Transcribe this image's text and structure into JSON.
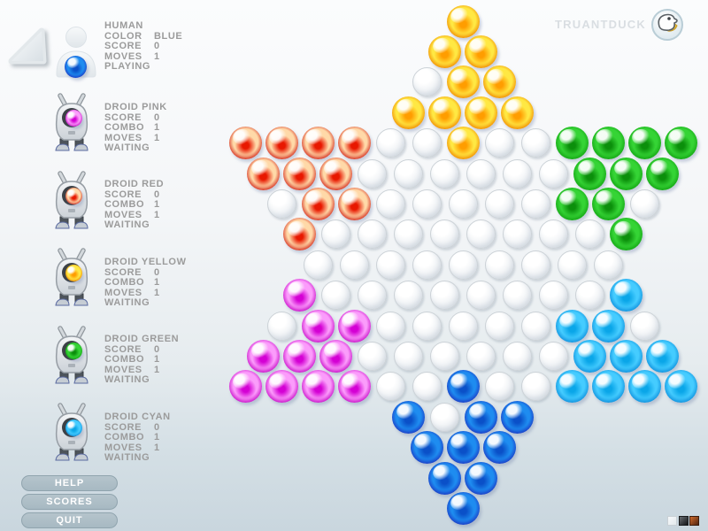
{
  "brand": {
    "name": "TRUANTDUCK",
    "logo_icon": "duck-logo-icon"
  },
  "players": [
    {
      "name": "HUMAN",
      "avatar": "human",
      "marble": "B",
      "stats": [
        [
          "COLOR",
          "BLUE"
        ],
        [
          "SCORE",
          "0"
        ],
        [
          "MOVES",
          "1"
        ]
      ],
      "status": "PLAYING"
    },
    {
      "name": "DROID PINK",
      "avatar": "droid",
      "marble": "M",
      "stats": [
        [
          "SCORE",
          "0"
        ],
        [
          "COMBO",
          "1"
        ],
        [
          "MOVES",
          "1"
        ]
      ],
      "status": "WAITING"
    },
    {
      "name": "DROID RED",
      "avatar": "droid",
      "marble": "R",
      "stats": [
        [
          "SCORE",
          "0"
        ],
        [
          "COMBO",
          "1"
        ],
        [
          "MOVES",
          "1"
        ]
      ],
      "status": "WAITING"
    },
    {
      "name": "DROID YELLOW",
      "avatar": "droid",
      "marble": "Y",
      "stats": [
        [
          "SCORE",
          "0"
        ],
        [
          "COMBO",
          "1"
        ],
        [
          "MOVES",
          "1"
        ]
      ],
      "status": "WAITING"
    },
    {
      "name": "DROID GREEN",
      "avatar": "droid",
      "marble": "G",
      "stats": [
        [
          "SCORE",
          "0"
        ],
        [
          "COMBO",
          "1"
        ],
        [
          "MOVES",
          "1"
        ]
      ],
      "status": "WAITING"
    },
    {
      "name": "DROID CYAN",
      "avatar": "droid",
      "marble": "C",
      "stats": [
        [
          "SCORE",
          "0"
        ],
        [
          "COMBO",
          "1"
        ],
        [
          "MOVES",
          "1"
        ]
      ],
      "status": "WAITING"
    }
  ],
  "buttons": [
    {
      "label": "HELP"
    },
    {
      "label": "SCORES"
    },
    {
      "label": "QUIT"
    }
  ],
  "swatches": [
    {
      "name": "white-swatch",
      "from": "#f6f9fb",
      "to": "#e3e9ec",
      "border": "#c9d0d5"
    },
    {
      "name": "black-swatch",
      "from": "#6a6e72",
      "to": "#121416",
      "border": "#1a1c1e"
    },
    {
      "name": "orange-swatch",
      "from": "#d06a2c",
      "to": "#4e2410",
      "border": "#3a1c0c"
    }
  ],
  "board": {
    "rows": [
      "Y",
      "YY",
      ".YY",
      "YYYY",
      "RRRR..Y..GGGG",
      "RRR......GGG",
      ".RR.....GG.",
      "R........G",
      ".........",
      "M........C",
      ".MM.....CC.",
      "MMM......CCC",
      "MMMM..B..CCCC",
      "B.BB",
      "BBB",
      "BB",
      "B"
    ],
    "palette": {
      "Y": {
        "name": "yellow",
        "edge": "#a33c00",
        "rim": "#f08a00",
        "body": "#ffe843",
        "core": "#ff9d00"
      },
      "R": {
        "name": "red",
        "edge": "#7a0c0c",
        "rim": "#d42a1d",
        "body": "#ffd9a8",
        "core": "#e81800"
      },
      "G": {
        "name": "green",
        "edge": "#064d06",
        "rim": "#13a313",
        "body": "#35d435",
        "core": "#0b8f0b"
      },
      "M": {
        "name": "magenta",
        "edge": "#6b046b",
        "rim": "#c80cc8",
        "body": "#fb9cfb",
        "core": "#d400d4"
      },
      "C": {
        "name": "cyan",
        "edge": "#0b42a8",
        "rim": "#0d8fdc",
        "body": "#45ccff",
        "core": "#0aa6e8"
      },
      "B": {
        "name": "blue",
        "edge": "#1a0c96",
        "rim": "#1b39c4",
        "body": "#1e8cf0",
        "core": "#0a50c8"
      }
    }
  }
}
